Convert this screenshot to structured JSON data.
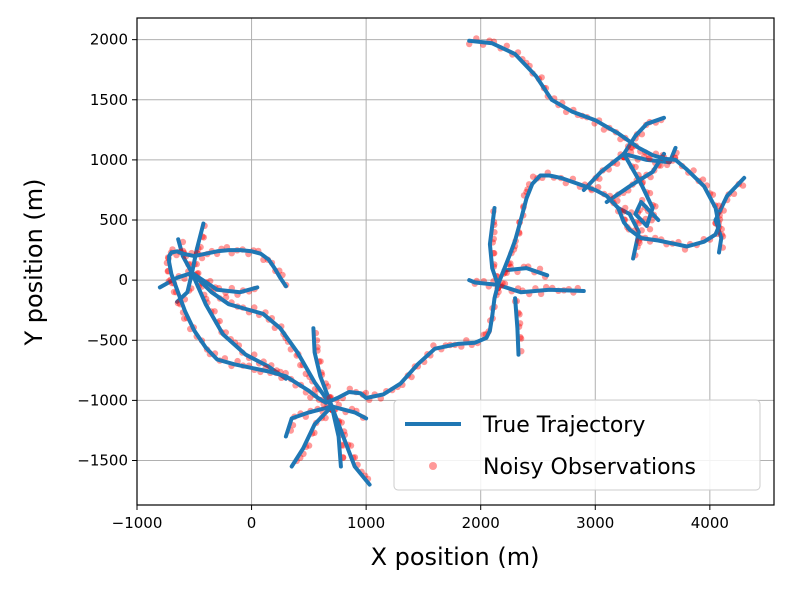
{
  "chart_data": {
    "type": "line",
    "title": "",
    "xlabel": "X position (m)",
    "ylabel": "Y position (m)",
    "xlim": [
      -1000,
      4560
    ],
    "ylim": [
      -1870,
      2180
    ],
    "x_ticks": [
      -1000,
      0,
      1000,
      2000,
      3000,
      4000
    ],
    "y_ticks": [
      -1500,
      -1000,
      -500,
      0,
      500,
      1000,
      1500,
      2000
    ],
    "x_tick_labels": [
      "−1000",
      "0",
      "1000",
      "2000",
      "3000",
      "4000"
    ],
    "y_tick_labels": [
      "−1500",
      "−1000",
      "−500",
      "0",
      "500",
      "1000",
      "1500",
      "2000"
    ],
    "grid": true,
    "legend_position": "lower-right",
    "series": [
      {
        "name": "True Trajectory",
        "kind": "line",
        "color": "#1f77b4",
        "x": [
          1900,
          2100,
          2300,
          2480,
          2620,
          2800,
          3000,
          3200,
          3380,
          3500,
          3600,
          3700,
          3800,
          3950,
          4050,
          4080,
          4050,
          3950,
          3800,
          3700,
          3550,
          3400,
          3300,
          3250,
          3200,
          3100,
          3000,
          2850,
          2700,
          2600,
          2520,
          2450,
          2400,
          2350,
          2300,
          2250,
          2200,
          2150,
          2120,
          2100,
          2080,
          2050,
          1950,
          1800,
          1600,
          1450,
          1300,
          1150,
          1000,
          950,
          850,
          750,
          650,
          580,
          500,
          400,
          300,
          150,
          0,
          -150,
          -300,
          -400,
          -500,
          -580,
          -650,
          -700,
          -720,
          -720,
          -700,
          -650,
          -600,
          -500,
          -400,
          -300,
          -200,
          -100,
          0,
          80,
          150,
          200,
          250,
          300
        ],
        "y": [
          1990,
          1970,
          1880,
          1700,
          1500,
          1400,
          1330,
          1220,
          1100,
          1040,
          1010,
          1000,
          920,
          780,
          600,
          450,
          380,
          320,
          280,
          300,
          330,
          350,
          420,
          480,
          600,
          700,
          750,
          800,
          850,
          870,
          870,
          800,
          680,
          500,
          330,
          200,
          80,
          -40,
          -150,
          -300,
          -420,
          -480,
          -520,
          -530,
          -570,
          -700,
          -860,
          -950,
          -980,
          -940,
          -930,
          -980,
          -1020,
          -980,
          -920,
          -860,
          -800,
          -760,
          -730,
          -700,
          -660,
          -560,
          -420,
          -260,
          -80,
          50,
          150,
          200,
          230,
          240,
          220,
          200,
          220,
          240,
          250,
          250,
          240,
          220,
          170,
          100,
          20,
          -50
        ]
      },
      {
        "name": "Noisy Observations",
        "kind": "scatter",
        "color": "#ff0000",
        "x": [
          1900,
          2100,
          2300,
          2480,
          2620,
          2800,
          3000,
          3200,
          3380,
          3500,
          3600,
          3700,
          3800,
          3950,
          4050,
          4080,
          4050,
          3950,
          3800,
          3700,
          3550,
          3400,
          3300,
          3250,
          3200,
          3100,
          3000,
          2850,
          2700,
          2600,
          2520,
          2450,
          2400,
          2350,
          2300,
          2250,
          2200,
          2150,
          2120,
          2100,
          2080,
          2050,
          1950,
          1800,
          1600,
          1450,
          1300,
          1150,
          1000,
          950,
          850,
          750,
          650,
          580,
          500,
          400,
          300,
          150,
          0,
          -150,
          -300,
          -400,
          -500,
          -580,
          -650,
          -700,
          -720,
          -720,
          -700,
          -650,
          -600,
          -500,
          -400,
          -300,
          -200,
          -100,
          0,
          80,
          150,
          200,
          250,
          300
        ],
        "y": [
          1990,
          1970,
          1880,
          1700,
          1500,
          1400,
          1330,
          1220,
          1100,
          1040,
          1010,
          1000,
          920,
          780,
          600,
          450,
          380,
          320,
          280,
          300,
          330,
          350,
          420,
          480,
          600,
          700,
          750,
          800,
          850,
          870,
          870,
          800,
          680,
          500,
          330,
          200,
          80,
          -40,
          -150,
          -300,
          -420,
          -480,
          -520,
          -530,
          -570,
          -700,
          -860,
          -950,
          -980,
          -940,
          -930,
          -980,
          -1020,
          -980,
          -920,
          -860,
          -800,
          -760,
          -730,
          -700,
          -660,
          -560,
          -420,
          -260,
          -80,
          50,
          150,
          200,
          230,
          240,
          220,
          200,
          220,
          240,
          250,
          250,
          240,
          220,
          170,
          100,
          20,
          -50
        ]
      }
    ],
    "branches": [
      {
        "name": "",
        "x": [
          -520,
          -600,
          -640
        ],
        "y": [
          60,
          200,
          340
        ]
      },
      {
        "name": "",
        "x": [
          -520,
          -480,
          -420
        ],
        "y": [
          60,
          250,
          470
        ]
      },
      {
        "name": "",
        "x": [
          -520,
          -650,
          -800
        ],
        "y": [
          60,
          20,
          -60
        ]
      },
      {
        "name": "",
        "x": [
          -520,
          -560,
          -650
        ],
        "y": [
          60,
          -100,
          -180
        ]
      },
      {
        "name": "",
        "x": [
          -520,
          -300,
          -100,
          50
        ],
        "y": [
          60,
          -80,
          -100,
          -60
        ]
      },
      {
        "name": "",
        "x": [
          -520,
          -400,
          -250,
          -50,
          150,
          300
        ],
        "y": [
          60,
          -200,
          -450,
          -620,
          -720,
          -820
        ]
      },
      {
        "name": "",
        "x": [
          -520,
          -350,
          -200,
          -50,
          100,
          250,
          400,
          550,
          700
        ],
        "y": [
          60,
          -100,
          -200,
          -240,
          -280,
          -400,
          -600,
          -850,
          -1050
        ]
      },
      {
        "name": "",
        "x": [
          700,
          600,
          550,
          540
        ],
        "y": [
          -1050,
          -800,
          -600,
          -400
        ]
      },
      {
        "name": "",
        "x": [
          700,
          500,
          350,
          300
        ],
        "y": [
          -1050,
          -1100,
          -1150,
          -1300
        ]
      },
      {
        "name": "",
        "x": [
          700,
          550,
          450,
          350
        ],
        "y": [
          -1050,
          -1200,
          -1400,
          -1550
        ]
      },
      {
        "name": "",
        "x": [
          700,
          800,
          900,
          1030
        ],
        "y": [
          -1050,
          -1300,
          -1550,
          -1700
        ]
      },
      {
        "name": "",
        "x": [
          700,
          760,
          780
        ],
        "y": [
          -1050,
          -1300,
          -1550
        ]
      },
      {
        "name": "",
        "x": [
          700,
          900,
          1000
        ],
        "y": [
          -1050,
          -1100,
          -1150
        ]
      },
      {
        "name": "",
        "x": [
          2150,
          2100,
          2080,
          2120
        ],
        "y": [
          -40,
          100,
          300,
          600
        ]
      },
      {
        "name": "",
        "x": [
          2150,
          1950,
          1900
        ],
        "y": [
          -40,
          -20,
          0
        ]
      },
      {
        "name": "",
        "x": [
          2150,
          2350,
          2600,
          2900
        ],
        "y": [
          -40,
          -100,
          -80,
          -90
        ]
      },
      {
        "name": "",
        "x": [
          2300,
          2320,
          2330
        ],
        "y": [
          -150,
          -400,
          -620
        ]
      },
      {
        "name": "",
        "x": [
          2200,
          2400,
          2580
        ],
        "y": [
          80,
          100,
          40
        ]
      },
      {
        "name": "",
        "x": [
          3250,
          3350,
          3450,
          3600
        ],
        "y": [
          1050,
          1200,
          1300,
          1350
        ]
      },
      {
        "name": "",
        "x": [
          3250,
          3050,
          2900
        ],
        "y": [
          1050,
          900,
          750
        ]
      },
      {
        "name": "",
        "x": [
          3250,
          3450,
          3650,
          3700
        ],
        "y": [
          1050,
          1000,
          980,
          1100
        ]
      },
      {
        "name": "",
        "x": [
          3250,
          3400,
          3500,
          3450,
          3350,
          3400,
          3550
        ],
        "y": [
          1050,
          800,
          600,
          450,
          550,
          650,
          500
        ]
      },
      {
        "name": "",
        "x": [
          3200,
          3300,
          3380,
          3330
        ],
        "y": [
          600,
          550,
          400,
          180
        ]
      },
      {
        "name": "",
        "x": [
          3600,
          3500,
          3300,
          3100
        ],
        "y": [
          1050,
          900,
          780,
          650
        ]
      },
      {
        "name": "",
        "x": [
          4050,
          4150,
          4300
        ],
        "y": [
          500,
          700,
          850
        ]
      },
      {
        "name": "",
        "x": [
          4050,
          4100,
          4080
        ],
        "y": [
          500,
          350,
          230
        ]
      }
    ]
  },
  "legend": {
    "items": [
      {
        "label": "True Trajectory",
        "kind": "line",
        "color": "#1f77b4"
      },
      {
        "label": "Noisy Observations",
        "kind": "marker",
        "color": "#ff0000"
      }
    ]
  }
}
